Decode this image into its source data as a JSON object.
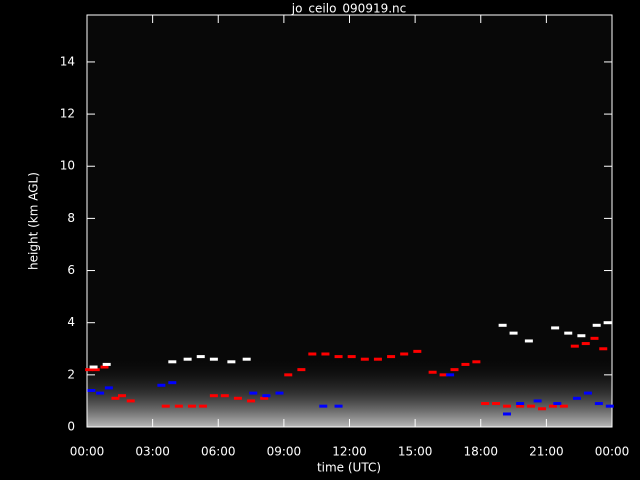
{
  "chart_data": {
    "type": "scatter",
    "title": "jo_ceilo_090919.nc",
    "x_label": "time (UTC)",
    "y_label": "height (km AGL)",
    "xlim": [
      0,
      24
    ],
    "xticks": [
      {
        "value": 0,
        "label": "00:00"
      },
      {
        "value": 3,
        "label": "03:00"
      },
      {
        "value": 6,
        "label": "06:00"
      },
      {
        "value": 9,
        "label": "09:00"
      },
      {
        "value": 12,
        "label": "12:00"
      },
      {
        "value": 15,
        "label": "15:00"
      },
      {
        "value": 18,
        "label": "18:00"
      },
      {
        "value": 21,
        "label": "21:00"
      },
      {
        "value": 24,
        "label": "00:00"
      }
    ],
    "ylim": [
      0,
      15.8
    ],
    "yticks": [
      0,
      2,
      4,
      6,
      8,
      10,
      12,
      14
    ],
    "series": [
      {
        "color": "#ff0000",
        "x": [
          0.1,
          0.4,
          0.8,
          1.3,
          1.6,
          2.0,
          3.6,
          4.2,
          4.8,
          5.3,
          5.8,
          6.3,
          6.9,
          7.5,
          8.1,
          9.2,
          9.8,
          10.3,
          10.9,
          11.5,
          12.1,
          12.7,
          13.3,
          13.9,
          14.5,
          15.1,
          15.8,
          16.3,
          16.8,
          17.3,
          17.8,
          18.2,
          18.7,
          19.2,
          19.8,
          20.3,
          20.8,
          21.3,
          21.8,
          22.3,
          22.8,
          23.2,
          23.6
        ],
        "values": [
          2.2,
          2.2,
          2.3,
          1.1,
          1.2,
          1.0,
          0.8,
          0.8,
          0.8,
          0.8,
          1.2,
          1.2,
          1.1,
          1.0,
          1.1,
          2.0,
          2.2,
          2.8,
          2.8,
          2.7,
          2.7,
          2.6,
          2.6,
          2.7,
          2.8,
          2.9,
          2.1,
          2.0,
          2.2,
          2.4,
          2.5,
          0.9,
          0.9,
          0.8,
          0.8,
          0.8,
          0.7,
          0.8,
          0.8,
          3.1,
          3.2,
          3.4,
          3.0
        ]
      },
      {
        "color": "#0000ff",
        "x": [
          0.2,
          0.6,
          1.0,
          3.4,
          3.9,
          7.6,
          8.2,
          8.8,
          10.8,
          11.5,
          16.6,
          19.2,
          19.8,
          20.6,
          21.5,
          22.4,
          22.9,
          23.4,
          23.9
        ],
        "values": [
          1.4,
          1.3,
          1.5,
          1.6,
          1.7,
          1.3,
          1.2,
          1.3,
          0.8,
          0.8,
          2.0,
          0.5,
          0.9,
          1.0,
          0.9,
          1.1,
          1.3,
          0.9,
          0.8
        ]
      },
      {
        "color": "#ffffff",
        "x": [
          0.3,
          0.9,
          3.9,
          4.6,
          5.2,
          5.8,
          6.6,
          7.3,
          19.0,
          19.5,
          20.2,
          21.4,
          22.0,
          22.6,
          23.3,
          23.8
        ],
        "values": [
          2.3,
          2.4,
          2.5,
          2.6,
          2.7,
          2.6,
          2.5,
          2.6,
          3.9,
          3.6,
          3.3,
          3.8,
          3.6,
          3.5,
          3.9,
          4.0
        ]
      }
    ]
  }
}
